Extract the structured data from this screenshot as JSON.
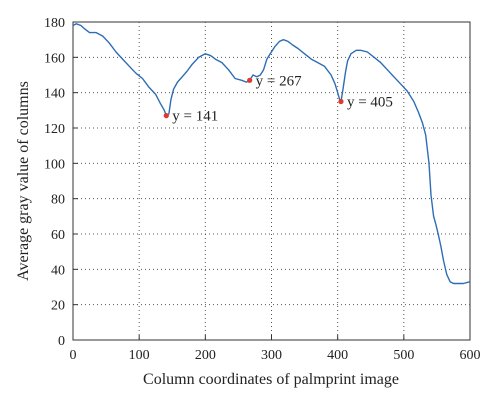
{
  "chart_data": {
    "type": "line",
    "title": "",
    "xlabel": "Column coordinates of palmprint image",
    "ylabel": "Average gray value of columns",
    "xlim": [
      0,
      600
    ],
    "ylim": [
      0,
      180
    ],
    "xticks": [
      0,
      100,
      200,
      300,
      400,
      500,
      600
    ],
    "yticks": [
      0,
      20,
      40,
      60,
      80,
      100,
      120,
      140,
      160,
      180
    ],
    "grid": "dotted",
    "legend": "none",
    "series": [
      {
        "color": "#2d6db5",
        "x": [
          0,
          5,
          12,
          18,
          25,
          35,
          45,
          55,
          65,
          75,
          85,
          95,
          105,
          115,
          125,
          132,
          138,
          141,
          145,
          148,
          152,
          158,
          165,
          172,
          180,
          190,
          200,
          208,
          215,
          225,
          235,
          245,
          255,
          262,
          267,
          272,
          278,
          283,
          288,
          293,
          298,
          305,
          312,
          318,
          325,
          332,
          340,
          350,
          360,
          370,
          380,
          390,
          396,
          400,
          403,
          405,
          408,
          412,
          415,
          420,
          428,
          435,
          445,
          455,
          465,
          475,
          485,
          495,
          505,
          515,
          522,
          528,
          533,
          538,
          541,
          545,
          548,
          552,
          556,
          560,
          565,
          570,
          575,
          580,
          590,
          600
        ],
        "y": [
          178,
          179,
          178,
          176,
          174,
          174,
          172,
          168,
          163,
          159,
          155,
          151,
          148,
          143,
          139,
          134,
          130,
          127,
          128,
          136,
          142,
          146,
          149,
          152,
          156,
          160,
          162,
          161,
          159,
          157,
          153,
          148,
          147,
          146,
          147,
          150,
          149,
          150,
          153,
          159,
          162,
          166,
          169,
          170,
          169,
          167,
          165,
          162,
          159,
          157,
          155,
          150,
          145,
          140,
          136,
          135,
          142,
          152,
          158,
          162,
          164,
          164,
          163,
          160,
          157,
          153,
          149,
          145,
          141,
          135,
          129,
          123,
          116,
          100,
          82,
          70,
          66,
          60,
          53,
          45,
          37,
          33,
          32,
          32,
          32,
          33
        ]
      }
    ],
    "annotations": [
      {
        "x": 141,
        "y": 127,
        "label": "y = 141"
      },
      {
        "x": 267,
        "y": 147,
        "label": "y = 267"
      },
      {
        "x": 405,
        "y": 135,
        "label": "y = 405"
      }
    ]
  }
}
